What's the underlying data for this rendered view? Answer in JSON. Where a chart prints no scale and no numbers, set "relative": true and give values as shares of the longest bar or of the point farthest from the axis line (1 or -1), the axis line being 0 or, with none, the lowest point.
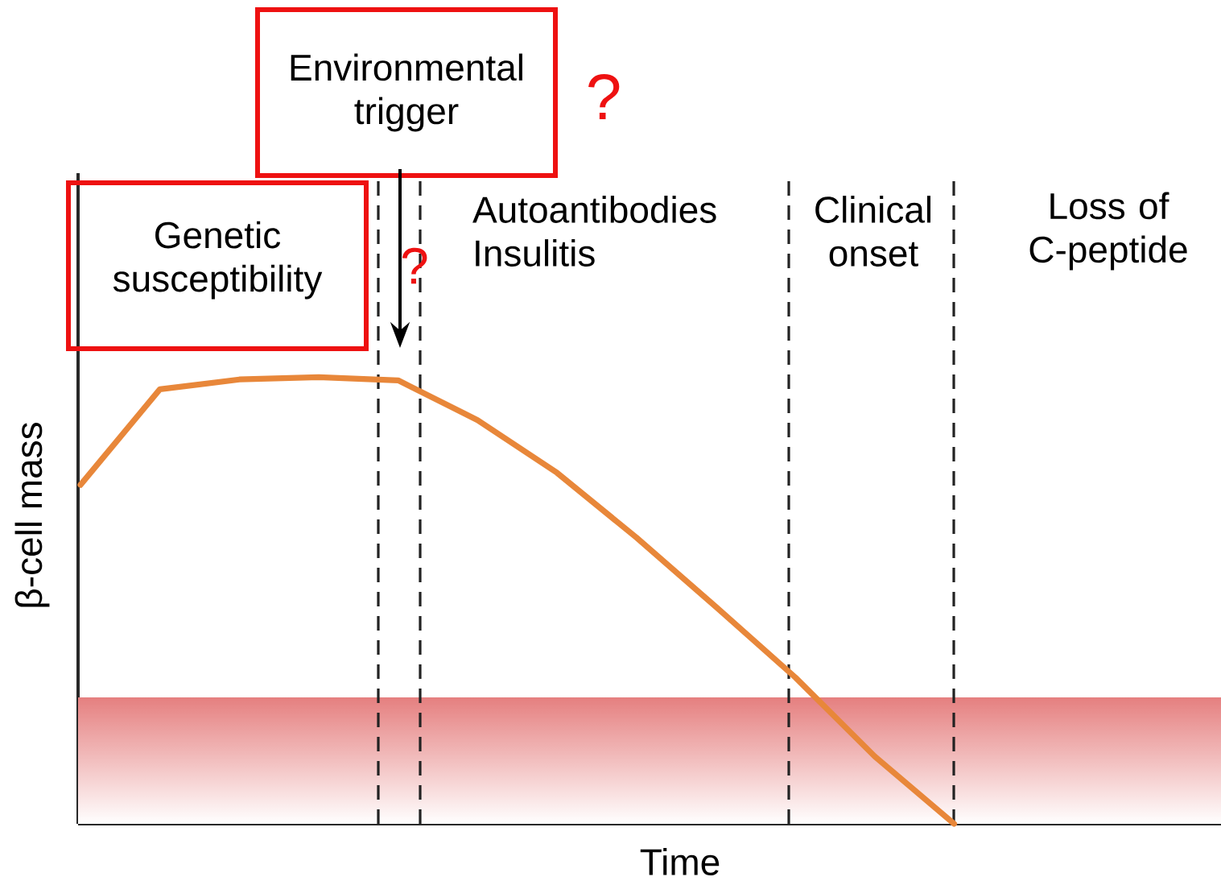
{
  "chart_data": {
    "type": "line",
    "relative": true,
    "color": "#e8873a",
    "categories": [
      null,
      null,
      null,
      null,
      null,
      null,
      null,
      null,
      null,
      null,
      null,
      null,
      null,
      null,
      null
    ],
    "values": [
      0.759,
      0.973,
      0.995,
      1,
      0.993,
      0.904,
      0.786,
      0.641,
      0.486,
      0.328,
      0.151,
      0,
      null,
      null,
      null
    ],
    "xlabel": "Time",
    "ylabel": "β-cell mass",
    "bands": [
      {
        "axis": "y",
        "from": 0,
        "to": 0.283,
        "color": "#e57f7f"
      }
    ],
    "annotations": [
      "Genetic susceptibility",
      "Environmental trigger",
      "?",
      "?",
      "Autoantibodies Insulitis",
      "Clinical onset",
      "Loss of C-peptide"
    ]
  }
}
